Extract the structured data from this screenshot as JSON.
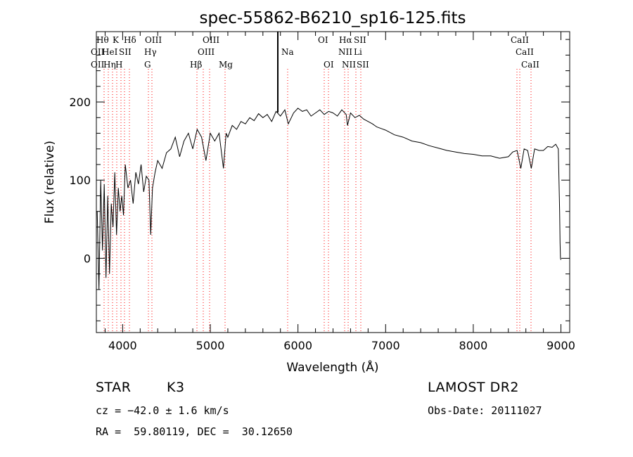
{
  "chart_data": {
    "type": "line",
    "title": "spec-55862-B6210_sp16-125.fits",
    "xlabel": "Wavelength (Å)",
    "ylabel": "Flux (relative)",
    "xlim": [
      3700,
      9100
    ],
    "ylim": [
      -95,
      290
    ],
    "xticks": [
      4000,
      5000,
      6000,
      7000,
      8000,
      9000
    ],
    "yticks": [
      0,
      100,
      200
    ],
    "grid": false,
    "line_color": "#000000",
    "marker_color": "#ff0000",
    "series": [
      {
        "x": [
          3710,
          3730,
          3750,
          3770,
          3790,
          3810,
          3830,
          3850,
          3870,
          3890,
          3910,
          3930,
          3950,
          3970,
          3990,
          4010,
          4030,
          4060,
          4090,
          4120,
          4150,
          4180,
          4210,
          4240,
          4270,
          4300,
          4320,
          4340,
          4370,
          4400,
          4450,
          4500,
          4550,
          4600,
          4650,
          4700,
          4750,
          4800,
          4850,
          4900,
          4950,
          5000,
          5050,
          5100,
          5150,
          5180,
          5200,
          5250,
          5300,
          5350,
          5400,
          5450,
          5500,
          5550,
          5600,
          5650,
          5700,
          5750,
          5800,
          5850,
          5890,
          5950,
          6000,
          6050,
          6100,
          6150,
          6200,
          6250,
          6300,
          6350,
          6400,
          6450,
          6500,
          6550,
          6565,
          6600,
          6650,
          6700,
          6750,
          6800,
          6850,
          6900,
          6950,
          7000,
          7100,
          7200,
          7300,
          7400,
          7500,
          7600,
          7700,
          7800,
          7900,
          8000,
          8100,
          8200,
          8300,
          8400,
          8450,
          8500,
          8542,
          8580,
          8620,
          8662,
          8700,
          8750,
          8800,
          8850,
          8900,
          8940,
          8970,
          8985,
          8990,
          8995,
          9000
        ],
        "y": [
          60,
          -40,
          100,
          10,
          95,
          -25,
          80,
          -20,
          70,
          40,
          110,
          30,
          90,
          60,
          80,
          55,
          120,
          90,
          100,
          70,
          110,
          95,
          120,
          85,
          105,
          100,
          30,
          90,
          110,
          125,
          115,
          135,
          140,
          155,
          130,
          150,
          160,
          140,
          165,
          155,
          125,
          160,
          150,
          160,
          115,
          160,
          155,
          170,
          165,
          175,
          172,
          180,
          176,
          185,
          180,
          184,
          175,
          188,
          182,
          190,
          172,
          186,
          192,
          188,
          190,
          182,
          186,
          190,
          184,
          188,
          186,
          182,
          190,
          184,
          170,
          186,
          180,
          183,
          178,
          175,
          172,
          168,
          166,
          164,
          158,
          155,
          150,
          148,
          144,
          141,
          138,
          136,
          134,
          133,
          131,
          131,
          128,
          130,
          136,
          138,
          115,
          140,
          138,
          115,
          140,
          138,
          138,
          143,
          142,
          146,
          140,
          60,
          20,
          0,
          -2
        ]
      }
    ],
    "line_markers": {
      "row1": [
        "Hθ",
        "K",
        "Hδ",
        "OIII",
        "OIII",
        "OI",
        "Hα",
        "SII",
        "CaII"
      ],
      "row2": [
        "OII",
        "HeI",
        "SII",
        "Hγ",
        "OIII",
        "Na",
        "NII",
        "Li",
        "CaII"
      ],
      "row3": [
        "OII",
        "Hη",
        "H",
        "G",
        "Hβ",
        "Mg",
        "OI",
        "NII",
        "SII",
        "CaII"
      ]
    }
  },
  "info": {
    "object_type": "STAR",
    "subclass": "K3",
    "survey": "LAMOST DR2",
    "redshift": "cz = −42.0 ± 1.6 km/s",
    "obs_date": "Obs-Date: 20111027",
    "coords": "RA =  59.80119, DEC =  30.12650"
  }
}
